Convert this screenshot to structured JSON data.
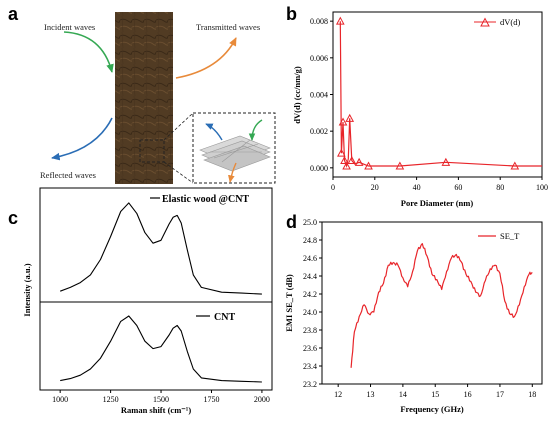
{
  "panels": {
    "a": {
      "label": "a",
      "incident": "Incident waves",
      "transmitted": "Transmitted waves",
      "reflected": "Reflected waves"
    },
    "b": {
      "label": "b",
      "xlabel": "Pore Diameter (nm)",
      "ylabel": "dV(d) (cc/nm/g)",
      "legend": "dV(d)",
      "xticks": [
        "0",
        "20",
        "40",
        "60",
        "80",
        "100"
      ],
      "yticks": [
        "0.000",
        "0.002",
        "0.004",
        "0.006",
        "0.008"
      ]
    },
    "c": {
      "label": "c",
      "xlabel": "Raman shift (cm⁻¹)",
      "ylabel": "Intensity (a.u.)",
      "legend_top": "Elastic wood @CNT",
      "legend_bottom": "CNT",
      "xticks": [
        "1000",
        "1250",
        "1500",
        "1750",
        "2000"
      ]
    },
    "d": {
      "label": "d",
      "xlabel": "Frequency (GHz)",
      "ylabel": "EMI SE_T (dB)",
      "legend": "SE_T",
      "xticks": [
        "12",
        "13",
        "14",
        "15",
        "16",
        "17",
        "18"
      ],
      "yticks": [
        "23.2",
        "23.4",
        "23.6",
        "23.8",
        "24.0",
        "24.2",
        "24.4",
        "24.6",
        "24.8",
        "25.0"
      ]
    }
  },
  "colors": {
    "red": "#e8252a",
    "green": "#35a853",
    "orange": "#e88a3a",
    "blue": "#2a6db5",
    "wood": "#5a4328"
  },
  "chart_data": [
    {
      "id": "b",
      "type": "line",
      "xlabel": "Pore Diameter (nm)",
      "ylabel": "dV(d) (cc/nm/g)",
      "xlim": [
        0,
        100
      ],
      "ylim": [
        -0.0005,
        0.0085
      ],
      "series": [
        {
          "name": "dV(d)",
          "x": [
            3.5,
            4.0,
            4.8,
            5.5,
            6.5,
            7.3,
            8.0,
            9.0,
            10.5,
            12.5,
            17.0,
            32.0,
            54.0,
            87.0,
            100.0
          ],
          "y": [
            0.008,
            0.0008,
            0.0025,
            0.0004,
            0.0001,
            0.0005,
            0.0027,
            0.0004,
            0.0002,
            0.0003,
            0.0001,
            0.0001,
            0.0003,
            0.0001,
            0.0001
          ],
          "markers_x": [
            3.5,
            4.0,
            4.8,
            5.5,
            6.5,
            8.0,
            9.0,
            12.5,
            17.0,
            32.0,
            54.0,
            87.0
          ],
          "markers_y": [
            0.008,
            0.0008,
            0.0025,
            0.0004,
            0.0001,
            0.0027,
            0.0004,
            0.0003,
            0.0001,
            0.0001,
            0.0003,
            0.0001
          ]
        }
      ]
    },
    {
      "id": "c",
      "type": "line",
      "xlabel": "Raman shift (cm⁻¹)",
      "ylabel": "Intensity (a.u.)",
      "xlim": [
        900,
        2050
      ],
      "series": [
        {
          "name": "Elastic wood @CNT",
          "x": [
            1000,
            1050,
            1100,
            1150,
            1200,
            1250,
            1300,
            1340,
            1380,
            1420,
            1460,
            1500,
            1540,
            1560,
            1580,
            1600,
            1630,
            1660,
            1700,
            1800,
            1900,
            2000
          ],
          "y": [
            0.05,
            0.09,
            0.14,
            0.22,
            0.38,
            0.62,
            0.88,
            0.97,
            0.86,
            0.66,
            0.55,
            0.58,
            0.75,
            0.82,
            0.84,
            0.76,
            0.48,
            0.22,
            0.09,
            0.04,
            0.03,
            0.02
          ]
        },
        {
          "name": "CNT",
          "x": [
            1000,
            1050,
            1100,
            1150,
            1200,
            1250,
            1300,
            1340,
            1380,
            1420,
            1460,
            1500,
            1540,
            1560,
            1580,
            1600,
            1630,
            1660,
            1700,
            1800,
            1900,
            2000
          ],
          "y": [
            0.05,
            0.08,
            0.13,
            0.22,
            0.38,
            0.63,
            0.92,
            1.0,
            0.86,
            0.63,
            0.52,
            0.55,
            0.72,
            0.82,
            0.86,
            0.78,
            0.48,
            0.22,
            0.09,
            0.05,
            0.04,
            0.03
          ]
        }
      ]
    },
    {
      "id": "d",
      "type": "line",
      "xlabel": "Frequency (GHz)",
      "ylabel": "EMI SE_T (dB)",
      "xlim": [
        11.5,
        18.3
      ],
      "ylim": [
        23.2,
        25.0
      ],
      "series": [
        {
          "name": "SE_T",
          "x": [
            12.4,
            12.5,
            12.65,
            12.8,
            12.95,
            13.1,
            13.25,
            13.4,
            13.55,
            13.7,
            13.85,
            14.0,
            14.15,
            14.3,
            14.45,
            14.6,
            14.75,
            14.9,
            15.05,
            15.2,
            15.35,
            15.5,
            15.65,
            15.8,
            15.95,
            16.1,
            16.25,
            16.4,
            16.55,
            16.7,
            16.85,
            17.0,
            17.15,
            17.3,
            17.45,
            17.6,
            17.75,
            17.9,
            18.0
          ],
          "y": [
            23.38,
            23.78,
            23.95,
            24.08,
            23.98,
            24.0,
            24.22,
            24.32,
            24.52,
            24.55,
            24.52,
            24.38,
            24.28,
            24.45,
            24.68,
            24.76,
            24.62,
            24.42,
            24.36,
            24.25,
            24.45,
            24.6,
            24.64,
            24.56,
            24.42,
            24.34,
            24.22,
            24.18,
            24.35,
            24.48,
            24.52,
            24.43,
            24.12,
            23.98,
            23.95,
            24.08,
            24.28,
            24.42,
            24.44
          ]
        }
      ]
    }
  ]
}
